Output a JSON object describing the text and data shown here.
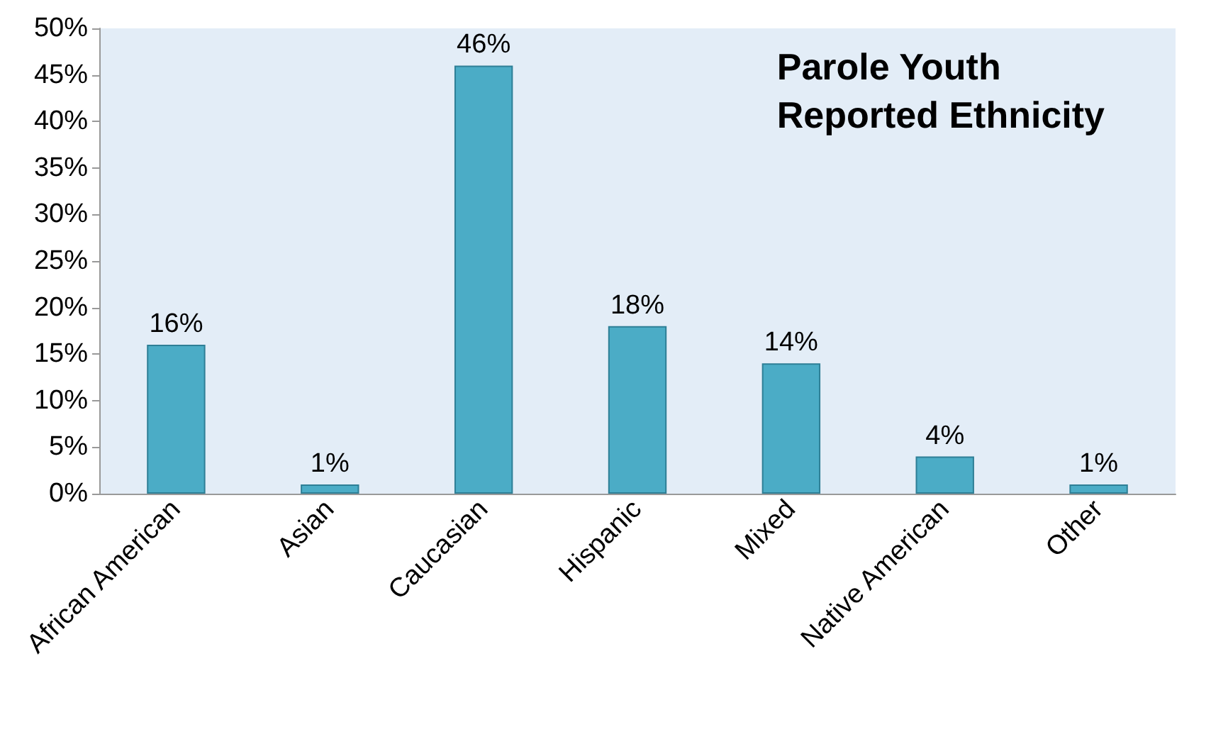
{
  "chart_data": {
    "type": "bar",
    "title": "Parole Youth\nReported Ethnicity",
    "categories": [
      "African American",
      "Asian",
      "Caucasian",
      "Hispanic",
      "Mixed",
      "Native American",
      "Other"
    ],
    "values": [
      16,
      1,
      46,
      18,
      14,
      4,
      1
    ],
    "value_labels": [
      "16%",
      "1%",
      "46%",
      "18%",
      "14%",
      "4%",
      "1%"
    ],
    "color": "#4bacc6",
    "ylim": [
      0,
      50
    ],
    "yticks": [
      {
        "value": 0,
        "label": "0%"
      },
      {
        "value": 5,
        "label": "5%"
      },
      {
        "value": 10,
        "label": "10%"
      },
      {
        "value": 15,
        "label": "15%"
      },
      {
        "value": 20,
        "label": "20%"
      },
      {
        "value": 25,
        "label": "25%"
      },
      {
        "value": 30,
        "label": "30%"
      },
      {
        "value": 35,
        "label": "35%"
      },
      {
        "value": 40,
        "label": "40%"
      },
      {
        "value": 45,
        "label": "45%"
      },
      {
        "value": 50,
        "label": "50%"
      }
    ]
  }
}
